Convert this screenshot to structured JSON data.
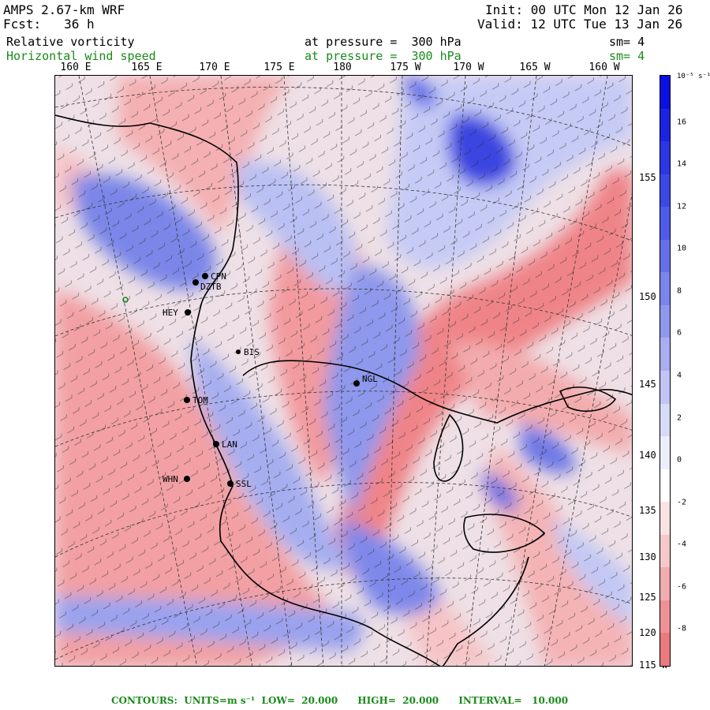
{
  "header": {
    "model": "AMPS 2.67-km WRF",
    "forecast": "Fcst:   36 h",
    "init": "Init: 00 UTC Mon 12 Jan 26",
    "valid": "Valid: 12 UTC Tue 13 Jan 26",
    "field1": "Relative vorticity",
    "field1_level": "at pressure =  300 hPa",
    "field1_sm": "sm= 4",
    "field2": "Horizontal wind speed",
    "field2_level": "at pressure =  300 hPa",
    "field2_sm": "sm= 4"
  },
  "longitude_labels": [
    "160 E",
    "165 E",
    "170 E",
    "175 E",
    "180",
    "175 W",
    "170 W",
    "165 W",
    "160 W"
  ],
  "latitude_labels": [
    "155 W",
    "150 W",
    "145 W",
    "140 W",
    "135 W",
    "130 W",
    "125 W",
    "120 W",
    "115 W"
  ],
  "stations": [
    {
      "name": "CPN"
    },
    {
      "name": "DZTB"
    },
    {
      "name": "HEY"
    },
    {
      "name": "BIS"
    },
    {
      "name": "NGL"
    },
    {
      "name": "TOM"
    },
    {
      "name": "LAN"
    },
    {
      "name": "WHN"
    },
    {
      "name": "SSL"
    }
  ],
  "colorbar": {
    "unit": "10⁻⁵ s⁻¹",
    "labels": [
      "16",
      "14",
      "12",
      "10",
      "8",
      "6",
      "4",
      "2",
      "0",
      "-2",
      "-4",
      "-6",
      "-8"
    ],
    "colors": {
      "strong_positive": "#1414e0",
      "positive": "#6e78e6",
      "weak_positive": "#d6dbf6",
      "neutral": "#ffffff",
      "weak_negative": "#f8d6d8",
      "negative": "#f0888c"
    }
  },
  "footer": {
    "text": "CONTOURS:  UNITS=m s⁻¹  LOW=  20.000      HIGH=  20.000      INTERVAL=   10.000"
  }
}
